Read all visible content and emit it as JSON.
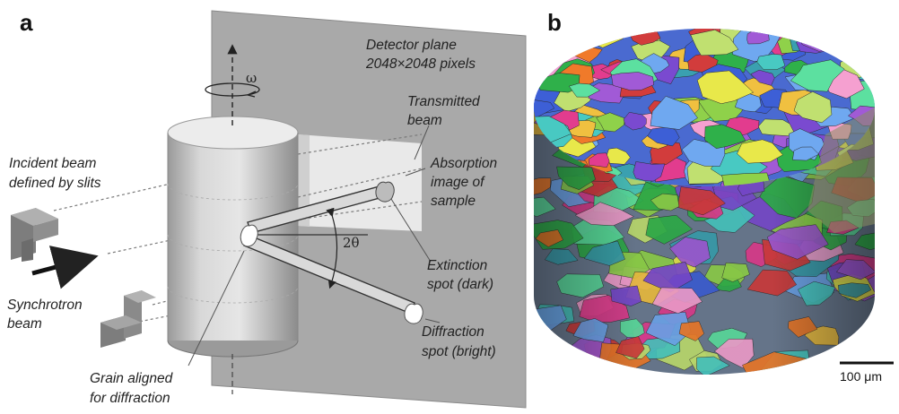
{
  "panels": {
    "a": "a",
    "b": "b"
  },
  "labels": {
    "detector_line1": "Detector plane",
    "detector_line2": "2048×2048 pixels",
    "omega": "ω",
    "transmitted_line1": "Transmitted",
    "transmitted_line2": "beam",
    "absorption_line1": "Absorption",
    "absorption_line2": "image of",
    "absorption_line3": "sample",
    "incident_line1": "Incident beam",
    "incident_line2": "defined by slits",
    "two_theta": "2θ",
    "extinction_line1": "Extinction",
    "extinction_line2": "spot (dark)",
    "synchrotron_line1": "Synchrotron",
    "synchrotron_line2": "beam",
    "diffraction_line1": "Diffraction",
    "diffraction_line2": "spot (bright)",
    "grain_line1": "Grain aligned",
    "grain_line2": "for diffraction"
  },
  "scale_bar": {
    "label": "100 μm"
  },
  "colors": {
    "detector": "#a8a8a8",
    "cylinder": "#c9c9c9",
    "slit": "#8a8a8a",
    "grain_palette": [
      "#3d5fd6",
      "#e23c8e",
      "#48c9c2",
      "#8fd14a",
      "#a15ad6",
      "#e8e84a",
      "#f07a2a",
      "#2fb04a",
      "#6fa8f0",
      "#d23c3c",
      "#5ce0a0",
      "#f5a0d0",
      "#3aa0b0",
      "#c0e070",
      "#7a4ad0",
      "#f0c040"
    ]
  }
}
